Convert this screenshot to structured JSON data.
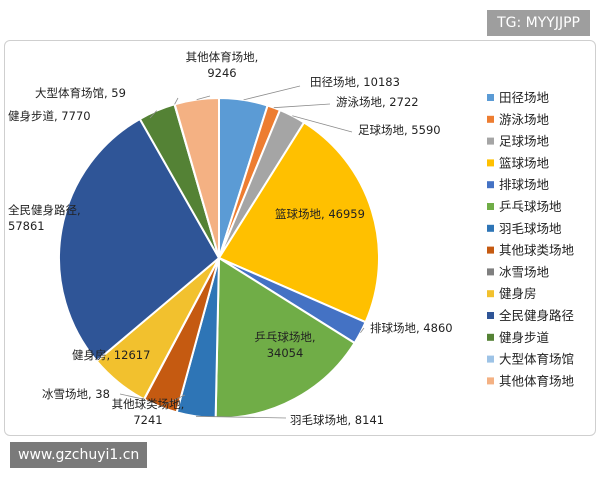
{
  "watermark_top": "TG: MYYJJPP",
  "watermark_bottom": "www.gzchuyi1.cn",
  "chart_data": {
    "type": "pie",
    "title": "",
    "legend_position": "right",
    "slices": [
      {
        "label": "田径场地",
        "value": 10183,
        "color": "#5b9bd5"
      },
      {
        "label": "游泳场地",
        "value": 2722,
        "color": "#ed7d31"
      },
      {
        "label": "足球场地",
        "value": 5590,
        "color": "#a5a5a5"
      },
      {
        "label": "篮球场地",
        "value": 46959,
        "color": "#ffc000"
      },
      {
        "label": "排球场地",
        "value": 4860,
        "color": "#4472c4"
      },
      {
        "label": "乒乓球场地",
        "value": 34054,
        "color": "#70ad47"
      },
      {
        "label": "羽毛球场地",
        "value": 8141,
        "color": "#2e75b6"
      },
      {
        "label": "其他球类场地",
        "value": 7241,
        "color": "#c55a11"
      },
      {
        "label": "冰雪场地",
        "value": 38,
        "color": "#7f7f7f"
      },
      {
        "label": "健身房",
        "value": 12617,
        "color": "#f2c12e"
      },
      {
        "label": "全民健身路径",
        "value": 57861,
        "color": "#2f5597"
      },
      {
        "label": "健身步道",
        "value": 7770,
        "color": "#548235"
      },
      {
        "label": "大型体育场馆",
        "value": 59,
        "color": "#9dc3e6"
      },
      {
        "label": "其他体育场地",
        "value": 9246,
        "color": "#f4b183"
      }
    ]
  }
}
